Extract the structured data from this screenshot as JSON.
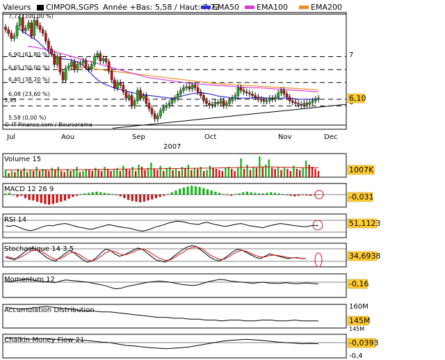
{
  "header": {
    "valeurs_label": "Valeurs",
    "symbol": "CIMPOR,SGPS",
    "range_info": "Année +Bas: 5,58 / Haut: 7,72",
    "ema50_label": "EMA50",
    "ema100_label": "EMA100",
    "ema200_label": "EMA200",
    "credit": "© IT-Finance.com / Boursorama",
    "colors": {
      "ema50": "#2b2bd9",
      "ema100": "#d63bd6",
      "ema200": "#f28b21",
      "up": "#19b319",
      "down": "#cc1111",
      "badge": "#ffcc33"
    }
  },
  "chart_data": [
    {
      "type": "candlestick",
      "title": "CIMPOR,SGPS",
      "x_ticks": [
        "Jul",
        "Aou",
        "Sep",
        "Oct",
        "Nov",
        "Dec"
      ],
      "x_year_label": "2007",
      "y_axis_label": "7",
      "ylim": [
        5.5,
        7.75
      ],
      "fibonacci_levels": [
        {
          "label": "7,72 (100,00 %)",
          "value": 7.72
        },
        {
          "label": "6,90 (61,80 %)",
          "value": 6.9
        },
        {
          "label": "6,65 (50,00 %)",
          "value": 6.65
        },
        {
          "label": "6,40 (38,20 %)",
          "value": 6.4
        },
        {
          "label": "6,08 (23,60 %)",
          "value": 6.08
        },
        {
          "label": "5,95",
          "value": 5.95
        },
        {
          "label": "5,58 (0,00 %)",
          "value": 5.58
        }
      ],
      "last_value": "6,10",
      "right_marker": "6",
      "series": [
        {
          "name": "EMA50"
        },
        {
          "name": "EMA100"
        },
        {
          "name": "EMA200"
        }
      ],
      "close": [
        7.42,
        7.35,
        7.25,
        7.3,
        7.5,
        7.65,
        7.4,
        7.45,
        7.55,
        7.3,
        7.6,
        7.5,
        7.42,
        7.35,
        7.2,
        7.05,
        6.95,
        6.75,
        6.9,
        6.6,
        6.45,
        6.68,
        6.72,
        6.8,
        6.65,
        6.75,
        6.78,
        6.82,
        6.7,
        6.66,
        6.75,
        6.9,
        6.96,
        6.82,
        6.86,
        6.8,
        6.62,
        6.45,
        6.3,
        6.4,
        6.35,
        6.22,
        6.1,
        6.15,
        5.95,
        6.05,
        6.25,
        6.1,
        6.15,
        6.0,
        5.9,
        5.8,
        5.7,
        5.76,
        5.86,
        5.92,
        5.96,
        6.0,
        6.06,
        6.1,
        6.18,
        6.25,
        6.3,
        6.32,
        6.28,
        6.35,
        6.3,
        6.22,
        6.15,
        6.05,
        6.0,
        5.96,
        5.98,
        6.02,
        6.0,
        6.05,
        5.96,
        6.0,
        6.05,
        6.1,
        6.15,
        6.3,
        6.25,
        6.22,
        6.2,
        6.18,
        6.15,
        6.12,
        6.08,
        6.06,
        6.04,
        6.05,
        6.1,
        6.08,
        6.12,
        6.2,
        6.25,
        6.18,
        6.12,
        6.05,
        6.02,
        6.0,
        5.98,
        5.96,
        6.0,
        5.98,
        6.02,
        6.05,
        6.08,
        6.1
      ],
      "ema50": [
        7.45,
        7.4,
        7.35,
        7.3,
        7.25,
        7.2,
        7.12,
        7.05,
        6.98,
        6.92,
        6.88,
        6.86,
        6.85,
        6.84,
        6.82,
        6.8,
        6.75,
        6.68,
        6.6,
        6.52,
        6.45,
        6.4,
        6.36,
        6.33,
        6.3,
        6.28,
        6.26,
        6.24,
        6.22,
        6.2,
        6.18,
        6.17,
        6.16,
        6.15,
        6.14,
        6.13,
        6.12,
        6.11,
        6.1,
        6.1,
        6.12,
        6.14,
        6.16,
        6.18,
        6.19,
        6.2,
        6.2,
        6.19,
        6.18,
        6.16,
        6.14,
        6.13,
        6.12,
        6.11,
        6.1,
        6.1,
        6.1,
        6.1,
        6.1,
        6.11,
        6.11,
        6.11,
        6.1,
        6.1,
        6.1,
        6.1,
        6.1,
        6.1,
        6.09,
        6.09,
        6.08,
        6.08,
        6.08,
        6.08,
        6.08,
        6.08
      ],
      "ema100": [
        7.1,
        7.08,
        7.05,
        7.02,
        6.98,
        6.94,
        6.9,
        6.86,
        6.82,
        6.78,
        6.74,
        6.7,
        6.66,
        6.62,
        6.58,
        6.54,
        6.5,
        6.48,
        6.46,
        6.44,
        6.42,
        6.4,
        6.38,
        6.37,
        6.36,
        6.35,
        6.34,
        6.33,
        6.32,
        6.31,
        6.3,
        6.3,
        6.29,
        6.28,
        6.27,
        6.26,
        6.25,
        6.24,
        6.23,
        6.22
      ],
      "ema200": [
        6.72,
        6.7,
        6.68,
        6.66,
        6.64,
        6.62,
        6.6,
        6.58,
        6.56,
        6.54,
        6.52,
        6.5,
        6.48,
        6.46,
        6.44,
        6.42,
        6.4,
        6.38,
        6.37,
        6.36,
        6.35,
        6.34,
        6.33,
        6.32,
        6.31,
        6.3,
        6.29,
        6.28,
        6.27,
        6.26
      ],
      "trendline": [
        [
          0.32,
          5.52
        ],
        [
          1.0,
          5.98
        ]
      ]
    },
    {
      "type": "bar",
      "title": "Volume 15",
      "last_value": "1007K",
      "values": [
        0.35,
        0.2,
        0.3,
        0.25,
        0.4,
        0.3,
        0.45,
        0.25,
        0.35,
        0.3,
        0.5,
        0.3,
        0.4,
        0.35,
        0.3,
        0.45,
        0.35,
        0.5,
        0.3,
        0.25,
        0.4,
        0.3,
        0.35,
        0.5,
        0.25,
        0.3,
        0.4,
        0.35,
        0.3,
        0.45,
        0.35,
        0.3,
        0.5,
        0.4,
        0.3,
        0.35,
        0.45,
        0.3,
        0.55,
        0.4,
        0.35,
        0.5,
        0.3,
        0.6,
        0.5,
        0.35,
        0.45,
        0.7,
        0.4,
        0.35,
        0.55,
        0.3,
        0.45,
        0.5,
        0.35,
        0.4,
        0.3,
        0.5,
        0.45,
        0.6,
        0.35,
        0.45,
        0.4,
        0.5,
        0.3,
        0.35,
        0.55,
        0.45,
        0.4,
        0.35,
        0.3,
        0.45,
        0.5,
        0.4,
        0.3,
        0.45,
        0.9,
        0.4,
        0.6,
        0.35,
        0.5,
        0.45,
        1.0,
        0.5,
        0.6,
        0.85,
        0.45,
        0.4,
        0.5,
        0.35,
        0.45,
        0.4,
        0.3,
        0.55,
        0.4,
        0.35,
        0.45,
        0.8,
        0.6,
        0.5,
        0.4,
        0.3
      ],
      "ma": [
        0.35,
        0.34,
        0.35,
        0.36,
        0.36,
        0.37,
        0.38,
        0.39,
        0.4,
        0.41,
        0.42,
        0.43,
        0.44,
        0.46,
        0.48,
        0.5,
        0.48,
        0.46,
        0.45
      ]
    },
    {
      "type": "bar",
      "title": "MACD 12 26 9",
      "last_value": "-0,031",
      "values": [
        0.1,
        0.15,
        -0.05,
        -0.2,
        -0.1,
        -0.3,
        -0.45,
        -0.5,
        -0.6,
        -0.7,
        -0.8,
        -0.85,
        -0.8,
        -0.7,
        -0.6,
        -0.5,
        -0.35,
        -0.2,
        -0.1,
        0.05,
        0.1,
        0.15,
        0.2,
        0.25,
        0.2,
        0.15,
        0.1,
        0.05,
        -0.05,
        -0.15,
        -0.3,
        -0.45,
        -0.55,
        -0.6,
        -0.65,
        -0.6,
        -0.5,
        -0.4,
        -0.3,
        -0.2,
        -0.1,
        0.05,
        0.2,
        0.35,
        0.5,
        0.6,
        0.7,
        0.75,
        0.7,
        0.65,
        0.55,
        0.45,
        0.35,
        0.25,
        0.15,
        0.05,
        -0.05,
        -0.1,
        0.05,
        0.1,
        0.2,
        0.25,
        0.2,
        0.15,
        0.1,
        0.1,
        0.15,
        0.2,
        0.15,
        0.1,
        0.05,
        -0.05,
        -0.1,
        -0.15,
        -0.1,
        -0.05,
        -0.08,
        -0.1,
        -0.05,
        -0.03
      ]
    },
    {
      "type": "line",
      "title": "RSI 14",
      "last_value": "51,1123",
      "ylim": [
        0,
        100
      ],
      "values": [
        50,
        48,
        52,
        45,
        38,
        32,
        30,
        35,
        42,
        48,
        52,
        50,
        55,
        58,
        60,
        55,
        50,
        45,
        42,
        38,
        35,
        40,
        45,
        50,
        55,
        52,
        48,
        45,
        42,
        40,
        35,
        30,
        28,
        32,
        38,
        45,
        50,
        55,
        62,
        66,
        70,
        68,
        65,
        60,
        58,
        56,
        62,
        65,
        60,
        55,
        52,
        48,
        50,
        54,
        58,
        60,
        55,
        50,
        48,
        45,
        42,
        48,
        52,
        56,
        60,
        58,
        55,
        52,
        50,
        48,
        46,
        50,
        52,
        51
      ]
    },
    {
      "type": "line",
      "title": "Stochastique 14 3 5",
      "last_value": "34,6938",
      "ylim": [
        0,
        100
      ],
      "values": [
        40,
        35,
        30,
        45,
        60,
        75,
        80,
        70,
        55,
        40,
        30,
        25,
        40,
        55,
        70,
        60,
        45,
        30,
        20,
        25,
        40,
        60,
        75,
        70,
        55,
        45,
        50,
        60,
        70,
        80,
        75,
        60,
        45,
        30,
        25,
        20,
        30,
        45,
        60,
        75,
        85,
        90,
        85,
        70,
        55,
        40,
        30,
        25,
        35,
        50,
        65,
        75,
        70,
        60,
        50,
        40,
        35,
        45,
        55,
        50,
        45,
        40,
        35,
        38,
        40,
        35,
        35
      ],
      "signal": [
        45,
        40,
        35,
        38,
        48,
        60,
        70,
        72,
        65,
        52,
        40,
        32,
        35,
        45,
        58,
        62,
        55,
        42,
        30,
        25,
        32,
        45,
        60,
        68,
        65,
        55,
        50,
        55,
        62,
        72,
        75,
        70,
        58,
        45,
        35,
        28,
        28,
        38,
        50,
        62,
        75,
        82,
        84,
        78,
        65,
        50,
        40,
        32,
        32,
        42,
        55,
        65,
        70,
        65,
        56,
        48,
        42,
        42,
        48,
        50,
        48,
        44,
        40,
        38,
        38,
        36,
        35
      ]
    },
    {
      "type": "line",
      "title": "Momentum 12",
      "last_value": "-0,16",
      "ylim": [
        -1,
        1
      ],
      "values": [
        0.1,
        0.05,
        0.15,
        0.2,
        0.25,
        0.2,
        0.1,
        0.05,
        0.0,
        -0.05,
        0.1,
        0.2,
        0.15,
        0.1,
        0.05,
        0.0,
        -0.1,
        -0.2,
        -0.3,
        -0.45,
        -0.6,
        -0.55,
        -0.4,
        -0.3,
        -0.2,
        -0.1,
        0.0,
        0.05,
        0.1,
        0.05,
        0.0,
        -0.1,
        -0.2,
        -0.25,
        -0.3,
        -0.25,
        -0.1,
        0.05,
        0.15,
        0.25,
        0.2,
        0.1,
        0.05,
        0.0,
        -0.05,
        -0.1,
        -0.05,
        0.0,
        -0.08,
        -0.1,
        -0.12,
        -0.05,
        -0.1,
        -0.15,
        -0.1,
        -0.08,
        -0.12,
        -0.16
      ]
    },
    {
      "type": "line",
      "title": "Accumulation Distribution",
      "last_value": "145M",
      "axis_labels": [
        "160M",
        "145M"
      ],
      "values": [
        160,
        159,
        158,
        159,
        160,
        161,
        160,
        159,
        158,
        157,
        156,
        156,
        155,
        155,
        154,
        153,
        152,
        151,
        150,
        149,
        149,
        148,
        148,
        147,
        147,
        146,
        146,
        145,
        146,
        146,
        145,
        145,
        146,
        146,
        145,
        145,
        146,
        145,
        145,
        145
      ]
    },
    {
      "type": "line",
      "title": "Chaikin Money Flow 21",
      "last_value": "-0,0393",
      "axis_labels": [
        "-0,4"
      ],
      "ylim": [
        -0.4,
        0.4
      ],
      "values": [
        0.15,
        0.18,
        0.16,
        0.12,
        0.14,
        0.15,
        0.12,
        0.1,
        0.12,
        0.1,
        0.08,
        0.05,
        0.02,
        0.0,
        -0.05,
        -0.1,
        -0.12,
        -0.15,
        -0.18,
        -0.2,
        -0.22,
        -0.2,
        -0.18,
        -0.15,
        -0.1,
        -0.05,
        0.0,
        0.05,
        0.08,
        0.1,
        0.12,
        0.1,
        0.08,
        0.05,
        0.02,
        0.0,
        -0.02,
        -0.04,
        -0.03,
        -0.04
      ]
    }
  ]
}
